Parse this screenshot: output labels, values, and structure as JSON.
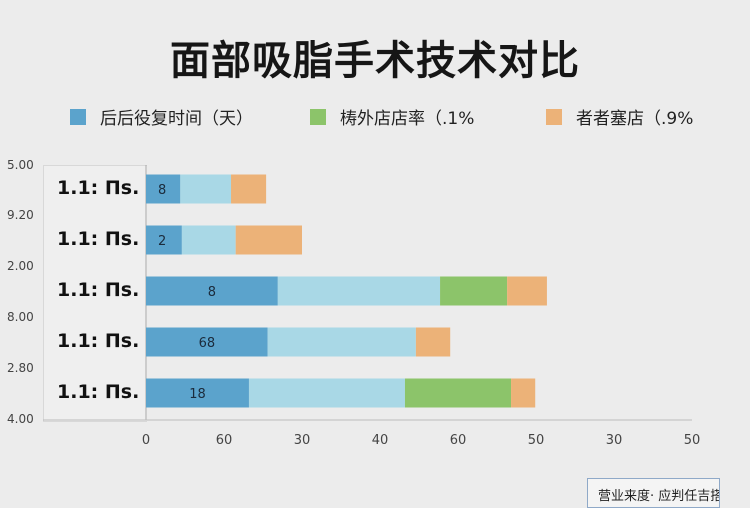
{
  "chart_data": {
    "type": "bar",
    "orientation": "horizontal",
    "stacked": true,
    "title": "面部吸脂手术技术对比",
    "legend_position": "top",
    "series": [
      {
        "name": "后后役复时间（天）",
        "color": "#5ba3cc",
        "values": [
          4.4,
          4.6,
          16.9,
          15.6,
          13.2
        ]
      },
      {
        "name": "",
        "color": "#a9d8e6",
        "values": [
          6.5,
          6.9,
          20.8,
          19.0,
          20.0
        ]
      },
      {
        "name": "梼外店店率（.1%",
        "color": "#8cc46a",
        "values": [
          0,
          0,
          8.6,
          0,
          13.6
        ]
      },
      {
        "name": "者者塞店（.9%",
        "color": "#ecb278",
        "values": [
          4.5,
          8.5,
          5.1,
          4.4,
          3.1
        ]
      }
    ],
    "legend": [
      {
        "label": "后后役复时间（天）",
        "color": "#5ba3cc"
      },
      {
        "label": "梼外店店率（.1%",
        "color": "#8cc46a"
      },
      {
        "label": "者者塞店（.9%",
        "color": "#ecb278"
      }
    ],
    "categories": [
      "1.1: Πs.",
      "1.1: Πs.",
      "1.1: Πs.",
      "1.1: Πs.",
      "1.1: Πs."
    ],
    "segment_labels": [
      "8",
      "2",
      "8",
      "68",
      "18"
    ],
    "y_side_labels": [
      "5.00",
      "9.20",
      "2.00",
      "8.00",
      "2.80",
      "4.00"
    ],
    "x_tick_labels": [
      "0",
      "60",
      "30",
      "40",
      "60",
      "50",
      "30",
      "50"
    ],
    "xlim": [
      0,
      70
    ],
    "grid": false
  },
  "source_note": "营业来度·  应判任吉搭"
}
